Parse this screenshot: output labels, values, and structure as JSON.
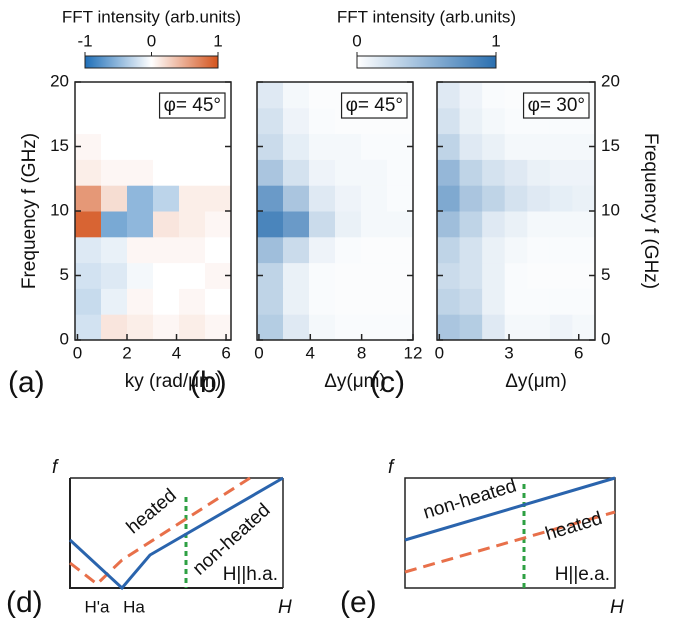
{
  "chart_data": [
    {
      "type": "heatmap",
      "panel_label": "(a)",
      "annotation": "φ= 45°",
      "x_label": "ky (rad/μm)",
      "y_label": "Frequency f (GHz)",
      "ytick_side": "left",
      "xlim": [
        -0.1,
        6.2
      ],
      "xticks": [
        0,
        2,
        4,
        6
      ],
      "ylim": [
        0,
        20
      ],
      "yticks": [
        0,
        5,
        10,
        15,
        20
      ],
      "zlim": [
        -1,
        1
      ],
      "colormap": [
        "#1f6fb8",
        "#ffffff",
        "#d4531c"
      ],
      "colorbar": {
        "label": "FFT intensity (arb.units)",
        "ticks": [
          -1,
          0,
          1
        ]
      },
      "z": [
        [
          -0.2,
          0.15,
          0.1,
          0.05,
          0.1,
          0.05
        ],
        [
          -0.25,
          -0.1,
          0.05,
          0,
          0.05,
          0
        ],
        [
          -0.2,
          -0.15,
          -0.05,
          0,
          0,
          0.05
        ],
        [
          -0.15,
          -0.1,
          0.05,
          0.05,
          0.05,
          0
        ],
        [
          0.9,
          -0.6,
          -0.5,
          0.15,
          0.1,
          0.05
        ],
        [
          0.6,
          0.2,
          -0.5,
          -0.3,
          0.1,
          0.1
        ],
        [
          0.1,
          0.05,
          0.05,
          0,
          0,
          0
        ],
        [
          0.05,
          0,
          0,
          0,
          0,
          0
        ],
        [
          0,
          0,
          0,
          0,
          0,
          0
        ],
        [
          0,
          0,
          0,
          0,
          0,
          0
        ]
      ]
    },
    {
      "type": "heatmap",
      "panel_label": "(b)",
      "annotation": "φ= 45°",
      "x_label": "Δy(μm)",
      "xlim": [
        -0.15,
        12
      ],
      "xticks": [
        0,
        4,
        8,
        12
      ],
      "ylim": [
        0,
        20
      ],
      "yticks": [
        0,
        5,
        10,
        15,
        20
      ],
      "zlim": [
        0,
        1
      ],
      "colormap": [
        "#ffffff",
        "#2a6fb0"
      ],
      "colorbar": {
        "label": "FFT intensity (arb.units)",
        "ticks": [
          0,
          1
        ]
      },
      "z": [
        [
          0.35,
          0.15,
          0.05,
          0.03,
          0.03,
          0.03
        ],
        [
          0.3,
          0.1,
          0.03,
          0.02,
          0.02,
          0.02
        ],
        [
          0.3,
          0.1,
          0.03,
          0.02,
          0.02,
          0.02
        ],
        [
          0.45,
          0.25,
          0.08,
          0.03,
          0.02,
          0.02
        ],
        [
          0.85,
          0.7,
          0.25,
          0.1,
          0.05,
          0.05
        ],
        [
          0.7,
          0.4,
          0.15,
          0.08,
          0.05,
          0.03
        ],
        [
          0.4,
          0.2,
          0.08,
          0.05,
          0.05,
          0.03
        ],
        [
          0.25,
          0.12,
          0.05,
          0.05,
          0.03,
          0.03
        ],
        [
          0.2,
          0.08,
          0.03,
          0.02,
          0.02,
          0.02
        ],
        [
          0.15,
          0.05,
          0.02,
          0.02,
          0.02,
          0.02
        ]
      ]
    },
    {
      "type": "heatmap",
      "panel_label": "(c)",
      "annotation": "φ= 30°",
      "x_label": "Δy(μm)",
      "y_label": "Frequency f (GHz)",
      "ytick_side": "right",
      "xlim": [
        -0.1,
        6.7
      ],
      "xticks": [
        0,
        3,
        6
      ],
      "ylim": [
        0,
        20
      ],
      "yticks": [
        0,
        5,
        10,
        15,
        20
      ],
      "zlim": [
        0,
        1
      ],
      "colormap": [
        "#ffffff",
        "#2a6fb0"
      ],
      "z": [
        [
          0.4,
          0.35,
          0.15,
          0.05,
          0.05,
          0.08,
          0.05
        ],
        [
          0.3,
          0.25,
          0.1,
          0.03,
          0.03,
          0.03,
          0.03
        ],
        [
          0.25,
          0.2,
          0.1,
          0.03,
          0.02,
          0.02,
          0.02
        ],
        [
          0.3,
          0.2,
          0.1,
          0.05,
          0.03,
          0.03,
          0.03
        ],
        [
          0.45,
          0.3,
          0.15,
          0.1,
          0.05,
          0.05,
          0.05
        ],
        [
          0.6,
          0.4,
          0.3,
          0.2,
          0.15,
          0.12,
          0.1
        ],
        [
          0.5,
          0.3,
          0.2,
          0.15,
          0.1,
          0.08,
          0.08
        ],
        [
          0.3,
          0.15,
          0.1,
          0.05,
          0.05,
          0.05,
          0.05
        ],
        [
          0.2,
          0.1,
          0.05,
          0.03,
          0.03,
          0.03,
          0.03
        ],
        [
          0.15,
          0.08,
          0.03,
          0.02,
          0.02,
          0.02,
          0.02
        ]
      ]
    },
    {
      "type": "schematic",
      "panel_label": "(d)",
      "y_label": "f",
      "x_label": "H",
      "annotations": [
        "heated",
        "non-heated",
        "H||h.a."
      ],
      "xtick_labels": [
        "H'a",
        "Ha"
      ]
    },
    {
      "type": "schematic",
      "panel_label": "(e)",
      "y_label": "f",
      "x_label": "H",
      "annotations": [
        "non-heated",
        "heated",
        "H||e.a."
      ]
    }
  ]
}
